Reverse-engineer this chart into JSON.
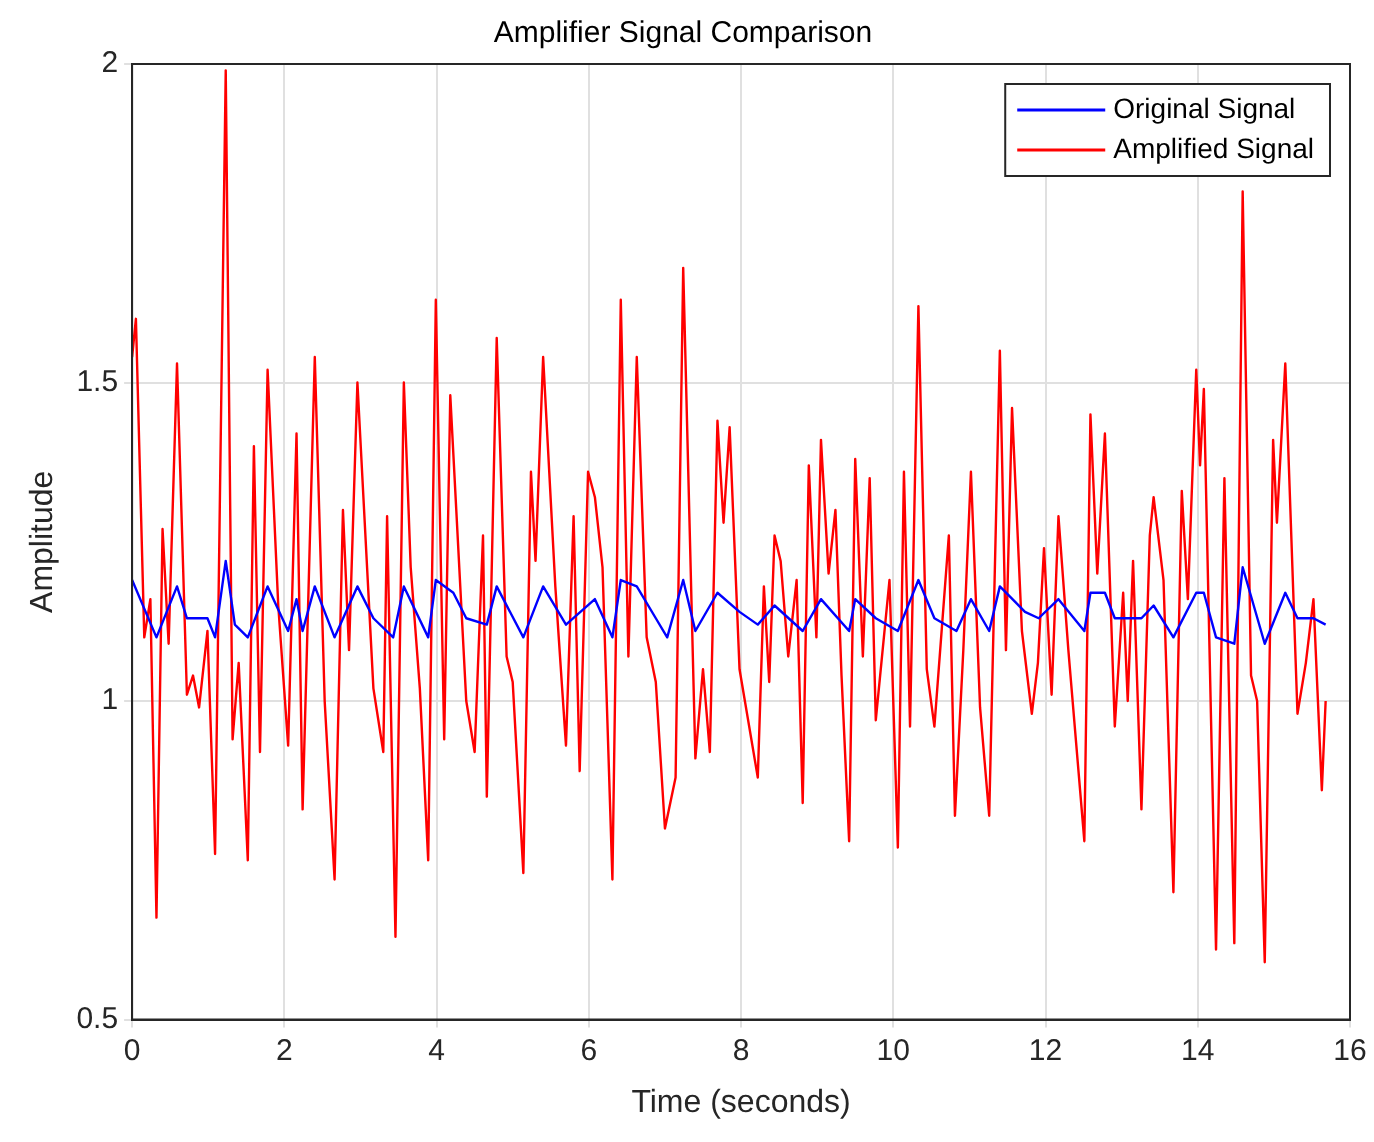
{
  "chart_data": {
    "type": "line",
    "title": "Amplifier Signal Comparison",
    "xlabel": "Time (seconds)",
    "ylabel": "Amplitude",
    "xlim": [
      0,
      16
    ],
    "xticks": [
      0,
      2,
      4,
      6,
      8,
      10,
      12,
      14,
      16
    ],
    "ylim": [
      0.5,
      2
    ],
    "yticks": [
      0.5,
      1,
      1.5,
      2
    ],
    "grid": true,
    "legend": "top right",
    "marker": "none",
    "line_style": "solid",
    "series": [
      {
        "name": "Original Signal",
        "color": "#0000ff",
        "x": [
          0,
          0.32,
          0.59,
          0.72,
          0.99,
          1.09,
          1.23,
          1.35,
          1.52,
          1.78,
          2.05,
          2.16,
          2.24,
          2.4,
          2.66,
          2.96,
          3.17,
          3.43,
          3.57,
          3.89,
          3.99,
          4.22,
          4.39,
          4.66,
          4.79,
          5.14,
          5.4,
          5.7,
          6.08,
          6.31,
          6.42,
          6.63,
          6.88,
          7.03,
          7.24,
          7.4,
          7.69,
          7.98,
          8.22,
          8.44,
          8.81,
          9.05,
          9.42,
          9.5,
          9.77,
          10.06,
          10.33,
          10.54,
          10.83,
          11.02,
          11.26,
          11.4,
          11.73,
          11.91,
          12.17,
          12.51,
          12.59,
          12.78,
          12.91,
          13.26,
          13.42,
          13.68,
          13.98,
          14.08,
          14.24,
          14.48,
          14.59,
          14.88,
          15.15,
          15.31,
          15.52,
          15.68
        ],
        "values": [
          1.19,
          1.1,
          1.18,
          1.13,
          1.13,
          1.1,
          1.22,
          1.12,
          1.1,
          1.18,
          1.11,
          1.16,
          1.11,
          1.18,
          1.1,
          1.18,
          1.13,
          1.1,
          1.18,
          1.1,
          1.19,
          1.17,
          1.13,
          1.12,
          1.18,
          1.1,
          1.18,
          1.12,
          1.16,
          1.1,
          1.19,
          1.18,
          1.13,
          1.1,
          1.19,
          1.11,
          1.17,
          1.14,
          1.12,
          1.15,
          1.11,
          1.16,
          1.11,
          1.16,
          1.13,
          1.11,
          1.19,
          1.13,
          1.11,
          1.16,
          1.11,
          1.18,
          1.14,
          1.13,
          1.16,
          1.11,
          1.17,
          1.17,
          1.13,
          1.13,
          1.15,
          1.1,
          1.17,
          1.17,
          1.1,
          1.09,
          1.21,
          1.09,
          1.17,
          1.13,
          1.13,
          1.12
        ]
      },
      {
        "name": "Amplified Signal",
        "color": "#ff0000",
        "x": [
          0,
          0.05,
          0.16,
          0.24,
          0.32,
          0.4,
          0.48,
          0.59,
          0.72,
          0.8,
          0.88,
          0.99,
          1.09,
          1.23,
          1.32,
          1.4,
          1.52,
          1.6,
          1.68,
          1.78,
          1.92,
          2.05,
          2.16,
          2.24,
          2.4,
          2.53,
          2.66,
          2.77,
          2.85,
          2.96,
          3.17,
          3.3,
          3.35,
          3.46,
          3.57,
          3.66,
          3.78,
          3.89,
          3.99,
          4.1,
          4.18,
          4.39,
          4.5,
          4.61,
          4.66,
          4.79,
          4.92,
          5.0,
          5.14,
          5.24,
          5.3,
          5.4,
          5.56,
          5.7,
          5.8,
          5.88,
          5.99,
          6.08,
          6.18,
          6.31,
          6.42,
          6.52,
          6.63,
          6.76,
          6.88,
          7.0,
          7.14,
          7.24,
          7.4,
          7.5,
          7.59,
          7.69,
          7.77,
          7.85,
          7.98,
          8.22,
          8.3,
          8.37,
          8.44,
          8.52,
          8.62,
          8.73,
          8.81,
          8.89,
          8.99,
          9.05,
          9.15,
          9.24,
          9.32,
          9.42,
          9.5,
          9.6,
          9.69,
          9.77,
          9.95,
          10.06,
          10.14,
          10.22,
          10.33,
          10.44,
          10.54,
          10.73,
          10.81,
          10.92,
          11.02,
          11.14,
          11.26,
          11.4,
          11.48,
          11.56,
          11.69,
          11.82,
          11.9,
          11.98,
          12.08,
          12.17,
          12.3,
          12.51,
          12.59,
          12.68,
          12.78,
          12.91,
          13.02,
          13.08,
          13.15,
          13.26,
          13.37,
          13.42,
          13.55,
          13.68,
          13.79,
          13.87,
          13.98,
          14.03,
          14.08,
          14.24,
          14.35,
          14.48,
          14.59,
          14.7,
          14.78,
          14.88,
          14.99,
          15.04,
          15.15,
          15.31,
          15.42,
          15.52,
          15.63,
          15.68
        ],
        "values": [
          1.54,
          1.6,
          1.1,
          1.16,
          0.66,
          1.27,
          1.09,
          1.53,
          1.01,
          1.04,
          0.99,
          1.11,
          0.76,
          1.99,
          0.94,
          1.06,
          0.75,
          1.4,
          0.92,
          1.52,
          1.15,
          0.93,
          1.42,
          0.83,
          1.54,
          1,
          0.72,
          1.3,
          1.08,
          1.5,
          1.02,
          0.92,
          1.29,
          0.63,
          1.5,
          1.21,
          1.02,
          0.75,
          1.63,
          0.94,
          1.48,
          1,
          0.92,
          1.26,
          0.85,
          1.57,
          1.07,
          1.03,
          0.73,
          1.36,
          1.22,
          1.54,
          1.18,
          0.93,
          1.29,
          0.89,
          1.36,
          1.32,
          1.21,
          0.72,
          1.63,
          1.07,
          1.54,
          1.1,
          1.03,
          0.8,
          0.88,
          1.68,
          0.91,
          1.05,
          0.92,
          1.44,
          1.28,
          1.43,
          1.05,
          0.88,
          1.18,
          1.03,
          1.26,
          1.22,
          1.07,
          1.19,
          0.84,
          1.37,
          1.1,
          1.41,
          1.2,
          1.3,
          1.04,
          0.78,
          1.38,
          1.07,
          1.35,
          0.97,
          1.19,
          0.77,
          1.36,
          0.96,
          1.62,
          1.05,
          0.96,
          1.26,
          0.82,
          1.08,
          1.36,
          0.99,
          0.82,
          1.55,
          1.08,
          1.46,
          1.11,
          0.98,
          1.06,
          1.24,
          1.01,
          1.29,
          1.08,
          0.78,
          1.45,
          1.2,
          1.42,
          0.96,
          1.17,
          1,
          1.22,
          0.83,
          1.26,
          1.32,
          1.19,
          0.7,
          1.33,
          1.16,
          1.52,
          1.37,
          1.49,
          0.61,
          1.35,
          0.62,
          1.8,
          1.04,
          1,
          0.59,
          1.41,
          1.28,
          1.53,
          0.98,
          1.06,
          1.16,
          0.86,
          1
        ]
      }
    ]
  }
}
